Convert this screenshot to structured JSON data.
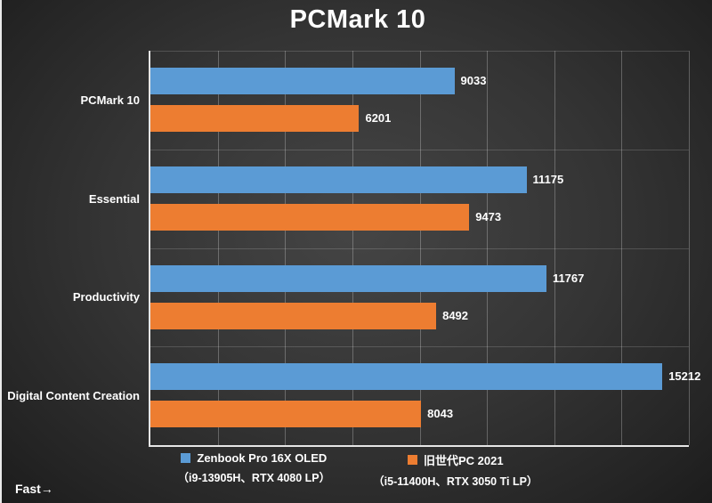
{
  "title": "PCMark 10",
  "fast_label": "Fast→",
  "colors": {
    "series1": "#5b9bd5",
    "series2": "#ed7d31",
    "axis": "#e6e6e6",
    "gridline": "rgba(255,255,255,0.26)",
    "background_dark": "#1c1c1c",
    "background_light": "#454545",
    "text": "#ffffff"
  },
  "chart_data": {
    "type": "bar",
    "orientation": "horizontal",
    "title": "PCMark 10",
    "categories": [
      "PCMark 10",
      "Essential",
      "Productivity",
      "Digital Content Creation"
    ],
    "series": [
      {
        "name": "Zenbook Pro 16X OLED",
        "sub": "（i9-13905H、RTX 4080 LP）",
        "color": "#5b9bd5",
        "values": [
          9033,
          11175,
          11767,
          15212
        ]
      },
      {
        "name": "旧世代PC 2021",
        "sub": "（i5-11400H、RTX 3050 Ti LP）",
        "color": "#ed7d31",
        "values": [
          6201,
          9473,
          8492,
          8043
        ]
      }
    ],
    "xlim": [
      0,
      16000
    ],
    "grid_step": 2000,
    "grid": true,
    "legend_position": "bottom",
    "value_labels": true,
    "direction_note": "Fast→"
  },
  "legend": {
    "items": [
      {
        "label": "Zenbook Pro 16X OLED",
        "sub": "（i9-13905H、RTX 4080 LP）",
        "color": "#5b9bd5"
      },
      {
        "label": "旧世代PC 2021",
        "sub": "（i5-11400H、RTX 3050 Ti LP）",
        "color": "#ed7d31"
      }
    ]
  }
}
